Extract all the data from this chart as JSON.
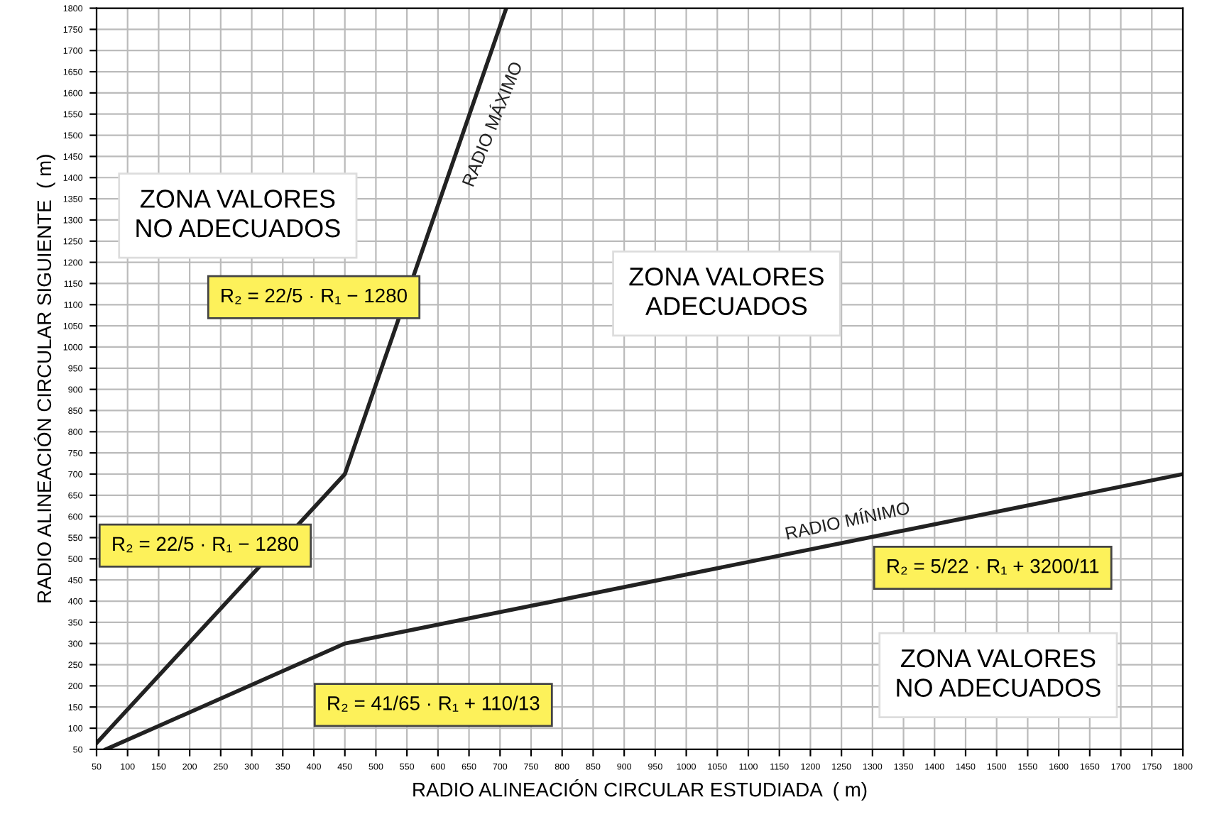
{
  "chart_data": {
    "type": "line",
    "xlabel": "RADIO ALINEACIÓN CIRCULAR ESTUDIADA  ( m)",
    "ylabel": "RADIO ALINEACIÓN CIRCULAR SIGUIENTE  ( m)",
    "series": [
      {
        "name": "RADIO MÁXIMO",
        "color": "#222222",
        "x": [
          50,
          450,
          710
        ],
        "values": [
          65,
          700,
          1800
        ]
      },
      {
        "name": "RADIO MÍNIMO",
        "color": "#222222",
        "x": [
          65,
          450,
          1800
        ],
        "values": [
          50,
          300,
          700
        ]
      }
    ],
    "xlim": [
      50,
      1800
    ],
    "ylim": [
      50,
      1800
    ],
    "xticks": [
      50,
      100,
      150,
      200,
      250,
      300,
      350,
      400,
      450,
      500,
      550,
      600,
      650,
      700,
      750,
      800,
      850,
      900,
      950,
      1000,
      1050,
      1100,
      1150,
      1200,
      1250,
      1300,
      1350,
      1400,
      1450,
      1500,
      1550,
      1600,
      1650,
      1700,
      1750,
      1800
    ],
    "yticks": [
      50,
      100,
      150,
      200,
      250,
      300,
      350,
      400,
      450,
      500,
      550,
      600,
      650,
      700,
      750,
      800,
      850,
      900,
      950,
      1000,
      1050,
      1100,
      1150,
      1200,
      1250,
      1300,
      1350,
      1400,
      1450,
      1500,
      1550,
      1600,
      1650,
      1700,
      1750,
      1800
    ],
    "grid": true,
    "marker": "none",
    "line_style": "solid",
    "annotations": [
      "ZONA VALORES\nNO ADECUADOS",
      "ZONA VALORES\nADECUADOS",
      "ZONA VALORES\nNO ADECUADOS",
      "R₂ = 22/5 · R₁ − 1280",
      "R₂ = 22/5 · R₁ − 1280",
      "R₂ = 41/65 · R₁ + 110/13",
      "R₂ = 5/22 · R₁ + 3200/11"
    ]
  }
}
